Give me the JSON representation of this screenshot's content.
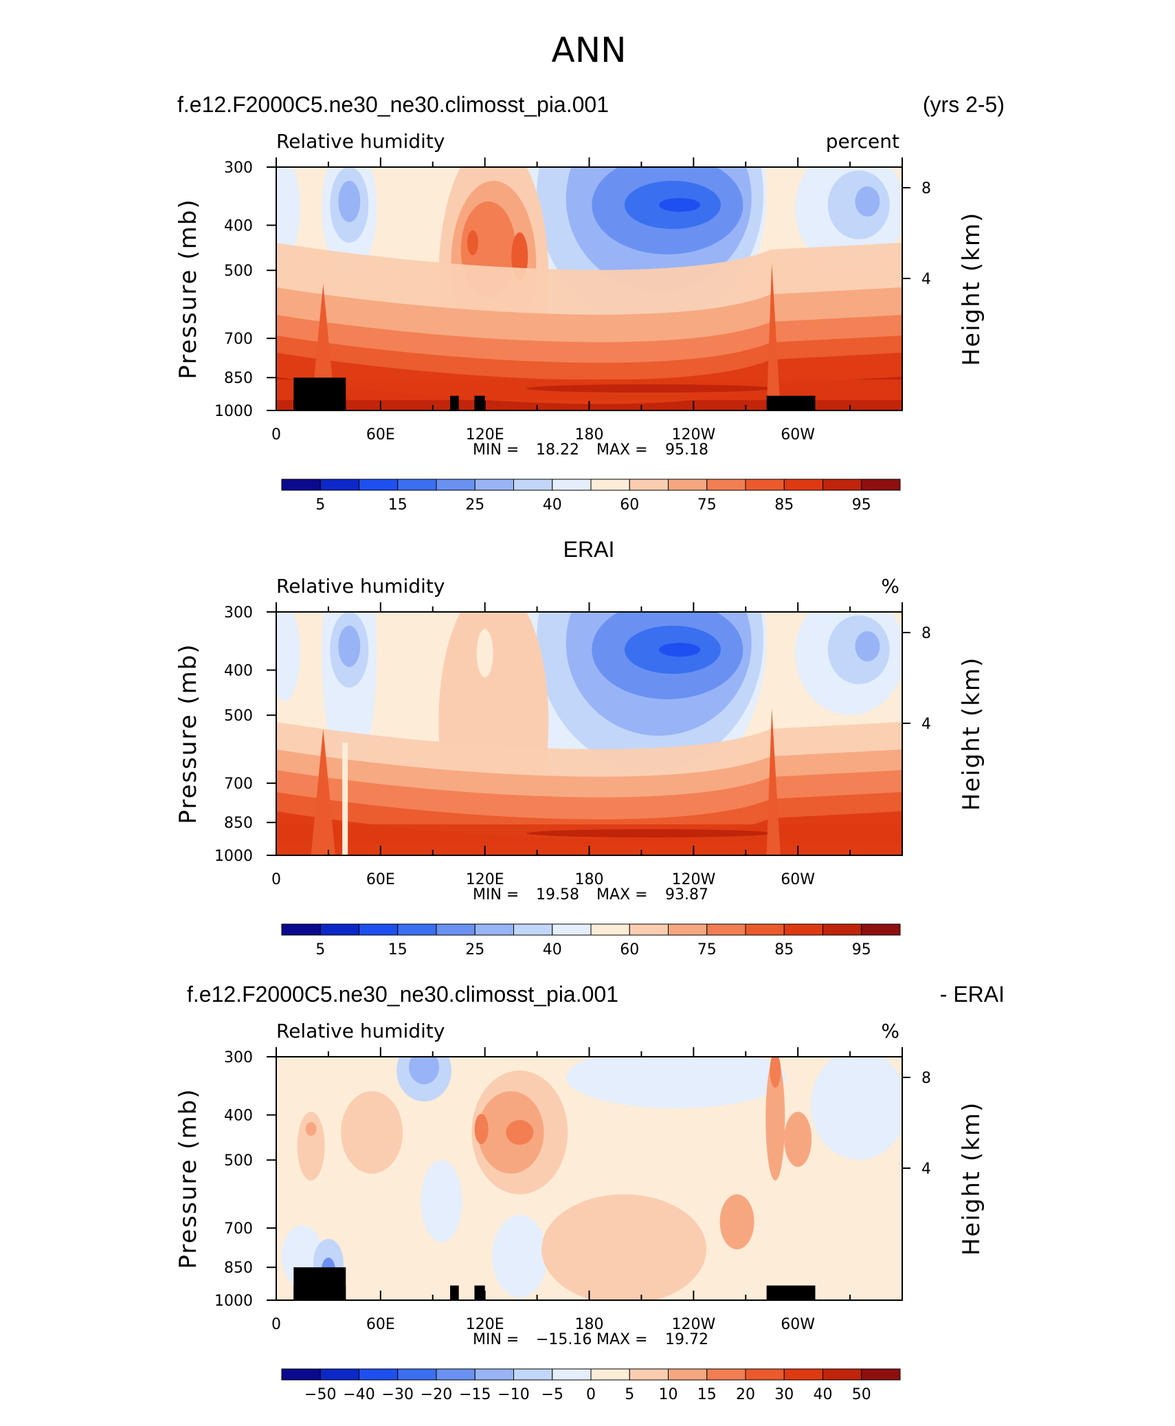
{
  "figure": {
    "title": "ANN"
  },
  "chart_data": [
    {
      "type": "heatmap",
      "panel_title": "f.e12.F2000C5.ne30_ne30.climosst_pia.001",
      "panel_title_right": "(yrs 2-5)",
      "left_string": "Relative humidity",
      "right_string": "percent",
      "ylabel": "Pressure (mb)",
      "ylabel_right": "Height (km)",
      "y_ticks": [
        "300",
        "400",
        "500",
        "700",
        "850",
        "1000"
      ],
      "y_right_ticks": [
        "8",
        "4"
      ],
      "x_ticks": [
        "0",
        "60E",
        "120E",
        "180",
        "120W",
        "60W"
      ],
      "stats": {
        "min_label": "MIN =",
        "min": "18.22",
        "max_label": "MAX =",
        "max": "95.18"
      },
      "colorbar_labels": [
        "5",
        "15",
        "25",
        "40",
        "60",
        "75",
        "85",
        "95"
      ],
      "colors": [
        "#0b0a8f",
        "#0d28c8",
        "#1e4ff0",
        "#3a6ff0",
        "#6a91f2",
        "#98b4f6",
        "#c2d6fa",
        "#e4eefc",
        "#fdecd8",
        "#fbcdb0",
        "#f7a780",
        "#f27e52",
        "#ea5a2c",
        "#de3a12",
        "#c0240a",
        "#8f0f0f"
      ],
      "levels_shown": [
        18.22,
        95.18
      ]
    },
    {
      "type": "heatmap",
      "panel_title": "ERAI",
      "left_string": "Relative humidity",
      "right_string": "%",
      "ylabel": "Pressure (mb)",
      "ylabel_right": "Height (km)",
      "y_ticks": [
        "300",
        "400",
        "500",
        "700",
        "850",
        "1000"
      ],
      "y_right_ticks": [
        "8",
        "4"
      ],
      "x_ticks": [
        "0",
        "60E",
        "120E",
        "180",
        "120W",
        "60W"
      ],
      "stats": {
        "min_label": "MIN =",
        "min": "19.58",
        "max_label": "MAX =",
        "max": "93.87"
      },
      "colorbar_labels": [
        "5",
        "15",
        "25",
        "40",
        "60",
        "75",
        "85",
        "95"
      ],
      "colors": [
        "#0b0a8f",
        "#0d28c8",
        "#1e4ff0",
        "#3a6ff0",
        "#6a91f2",
        "#98b4f6",
        "#c2d6fa",
        "#e4eefc",
        "#fdecd8",
        "#fbcdb0",
        "#f7a780",
        "#f27e52",
        "#ea5a2c",
        "#de3a12",
        "#c0240a",
        "#8f0f0f"
      ]
    },
    {
      "type": "heatmap",
      "panel_title": "f.e12.F2000C5.ne30_ne30.climosst_pia.001",
      "panel_title_right": "- ERAI",
      "left_string": "Relative humidity",
      "right_string": "%",
      "ylabel": "Pressure (mb)",
      "ylabel_right": "Height (km)",
      "y_ticks": [
        "300",
        "400",
        "500",
        "700",
        "850",
        "1000"
      ],
      "y_right_ticks": [
        "8",
        "4"
      ],
      "x_ticks": [
        "0",
        "60E",
        "120E",
        "180",
        "120W",
        "60W"
      ],
      "stats": {
        "min_label": "MIN =",
        "min": "−15.16",
        "max_label": "MAX =",
        "max": "19.72"
      },
      "colorbar_labels": [
        "−50",
        "−40",
        "−30",
        "−20",
        "−15",
        "−10",
        "−5",
        "0",
        "5",
        "10",
        "15",
        "20",
        "30",
        "40",
        "50"
      ],
      "colors": [
        "#0b0a8f",
        "#0d28c8",
        "#1e4ff0",
        "#3a6ff0",
        "#6a91f2",
        "#98b4f6",
        "#c2d6fa",
        "#e4eefc",
        "#fdecd8",
        "#fbcdb0",
        "#f7a780",
        "#f27e52",
        "#ea5a2c",
        "#de3a12",
        "#c0240a",
        "#8f0f0f"
      ]
    }
  ]
}
